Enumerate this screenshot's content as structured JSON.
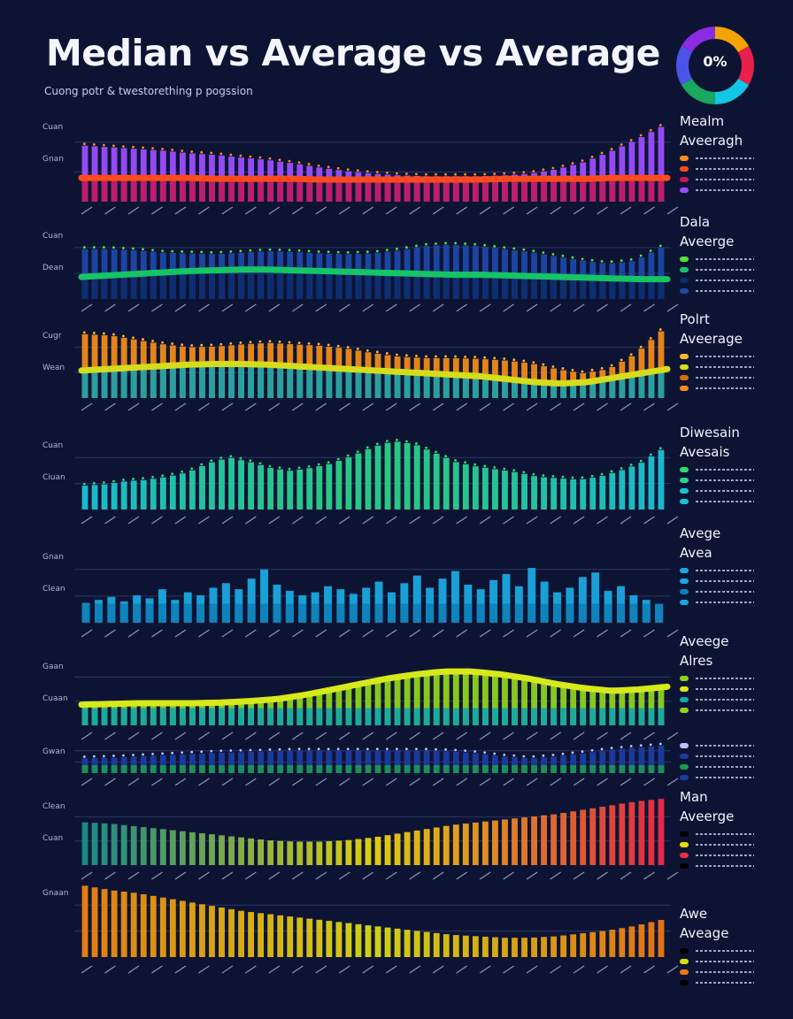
{
  "title": "Median vs Average vs Average",
  "subtitle": "Cuong potr & twestorething p pogssion",
  "badge": {
    "label": "0%",
    "colors": [
      "#f5a300",
      "#e8204a",
      "#12c7e5",
      "#18a860",
      "#4b54e8",
      "#8b2be2"
    ]
  },
  "chart_data": [
    {
      "type": "bar",
      "y_labels": [
        "Cuan",
        "Gnan"
      ],
      "legend": {
        "lines": [
          "Mealm",
          "Aveeragh"
        ]
      },
      "colors": {
        "bars_top": "#9b4dff",
        "bars_bottom": "#c2185b",
        "line": "#ff4a1c",
        "dots": "#ff8a1e"
      },
      "series": [
        {
          "name": "",
          "values": [
            66,
            64,
            62,
            60,
            57,
            55,
            52,
            49,
            45,
            40,
            36,
            33,
            31,
            30,
            30,
            30,
            31,
            33,
            38,
            46,
            58,
            72,
            88
          ]
        },
        {
          "name": "",
          "values": [
            28,
            28,
            28,
            28,
            28,
            27,
            27,
            27,
            27,
            26,
            26,
            26,
            26,
            26,
            26,
            26,
            27,
            27,
            27,
            27,
            28,
            28,
            28
          ]
        }
      ],
      "ylim": [
        0,
        100
      ]
    },
    {
      "type": "bar",
      "y_labels": [
        "Cuan",
        "Dean"
      ],
      "legend": {
        "lines": [
          "Dala",
          "Aveerge"
        ]
      },
      "colors": {
        "bars_top": "#1e47a8",
        "bars_bottom": "#0c2c6e",
        "line": "#16c466",
        "dots": "#55e23a"
      },
      "series": [
        {
          "name": "",
          "values": [
            68,
            68,
            66,
            63,
            62,
            61,
            63,
            65,
            64,
            62,
            61,
            62,
            66,
            72,
            74,
            72,
            68,
            64,
            58,
            52,
            48,
            52,
            70
          ]
        },
        {
          "name": "",
          "values": [
            30,
            32,
            34,
            36,
            38,
            39,
            40,
            40,
            39,
            38,
            37,
            36,
            35,
            34,
            33,
            33,
            32,
            31,
            30,
            29,
            28,
            27,
            27
          ]
        }
      ],
      "ylim": [
        0,
        100
      ]
    },
    {
      "type": "bar",
      "y_labels": [
        "Cugr",
        "Wean"
      ],
      "legend": {
        "lines": [
          "Polrt",
          "Aveerage"
        ]
      },
      "colors": {
        "bars_top": "#f08a18",
        "bars_bottom": "#d96a10",
        "line": "#d5dc1c",
        "dots": "#ffb53a",
        "bars_low": "#13a3b0"
      },
      "series": [
        {
          "name": "",
          "values": [
            88,
            86,
            80,
            74,
            70,
            71,
            74,
            76,
            74,
            72,
            68,
            62,
            57,
            55,
            55,
            54,
            52,
            48,
            40,
            34,
            40,
            60,
            92
          ]
        },
        {
          "name": "",
          "values": [
            38,
            40,
            42,
            44,
            46,
            47,
            47,
            46,
            44,
            42,
            40,
            38,
            36,
            34,
            32,
            30,
            26,
            22,
            20,
            22,
            28,
            34,
            40
          ]
        }
      ],
      "ylim": [
        0,
        100
      ]
    },
    {
      "type": "bar",
      "y_labels": [
        "Cuan",
        "Ciuan"
      ],
      "legend": {
        "lines": [
          "Diwesain",
          "Avesais"
        ]
      },
      "colors": {
        "bars_top": "#1cc0d6",
        "bars_mid": "#2bd08a",
        "dots": "#33d86a"
      },
      "series": [
        {
          "name": "",
          "values": [
            32,
            34,
            38,
            40,
            44,
            50,
            62,
            70,
            64,
            56,
            52,
            56,
            62,
            72,
            84,
            92,
            88,
            76,
            64,
            58,
            54,
            50,
            44,
            42,
            40,
            44,
            52,
            62,
            80
          ]
        }
      ],
      "ylim": [
        0,
        100
      ]
    },
    {
      "type": "bar",
      "y_labels": [
        "Gnan",
        "Clean"
      ],
      "legend": {
        "lines": [
          "Avege",
          "Avea"
        ]
      },
      "colors": {
        "bars_top": "#1aa8e0",
        "bars_bottom": "#0e7fb8"
      },
      "series": [
        {
          "name": "",
          "values": [
            26,
            30,
            34,
            28,
            36,
            32,
            44,
            30,
            40,
            36,
            46,
            52,
            44,
            58,
            70,
            50,
            42,
            36,
            40,
            48,
            44,
            38,
            46,
            54,
            40,
            52,
            62,
            46,
            58,
            68,
            50,
            44,
            56,
            64,
            48,
            72,
            54,
            40,
            46,
            60,
            66,
            42,
            48,
            36,
            30,
            24
          ]
        }
      ],
      "ylim": [
        0,
        100
      ]
    },
    {
      "type": "area",
      "y_labels": [
        "Gaan",
        "Cuaan"
      ],
      "legend": {
        "lines": [
          "Aveege",
          "Alres"
        ]
      },
      "colors": {
        "bars_top": "#8fd11e",
        "bars_bottom": "#11a7a9",
        "line": "#d7e81b"
      },
      "series": [
        {
          "name": "",
          "values": [
            30,
            31,
            32,
            32,
            32,
            33,
            35,
            38,
            44,
            52,
            60,
            68,
            74,
            78,
            78,
            74,
            68,
            60,
            54,
            50,
            52,
            56
          ]
        }
      ],
      "ylim": [
        0,
        100
      ]
    },
    {
      "type": "area",
      "y_labels": [
        "Gwan"
      ],
      "legend": {
        "lines": []
      },
      "colors": {
        "bars_top": "#1e3aa0",
        "bars_bottom": "#1a9a50",
        "dots": "#b9c4ff"
      },
      "series": [
        {
          "name": "",
          "values": [
            46,
            48,
            52,
            56,
            60,
            64,
            66,
            68,
            70,
            70,
            70,
            70,
            70,
            70,
            68,
            62,
            52,
            46,
            52,
            62,
            72,
            80,
            86
          ]
        }
      ],
      "ylim": [
        0,
        100
      ]
    },
    {
      "type": "bar",
      "y_labels": [
        "Clean",
        "Cuan"
      ],
      "legend": {
        "lines": [
          "Man",
          "Aveerge"
        ]
      },
      "colors": {
        "bars_start": "#1b8f8a",
        "bars_mid": "#e8d80e",
        "bars_end": "#ec2b45"
      },
      "series": [
        {
          "name": "",
          "values": [
            62,
            60,
            56,
            52,
            48,
            44,
            40,
            36,
            34,
            34,
            36,
            40,
            46,
            52,
            58,
            62,
            66,
            70,
            74,
            80,
            86,
            92,
            96
          ]
        }
      ],
      "ylim": [
        0,
        100
      ]
    },
    {
      "type": "bar",
      "y_labels": [
        "Gnaan"
      ],
      "legend": {
        "lines": [
          "Awe",
          "Aveage"
        ]
      },
      "colors": {
        "bars_start": "#ee8212",
        "bars_mid": "#d8dc14",
        "bars_end": "#ee7614"
      },
      "series": [
        {
          "name": "",
          "values": [
            96,
            90,
            86,
            80,
            74,
            68,
            62,
            58,
            54,
            50,
            46,
            42,
            38,
            34,
            30,
            28,
            26,
            26,
            28,
            32,
            36,
            42,
            50
          ]
        }
      ],
      "ylim": [
        0,
        100
      ]
    }
  ]
}
